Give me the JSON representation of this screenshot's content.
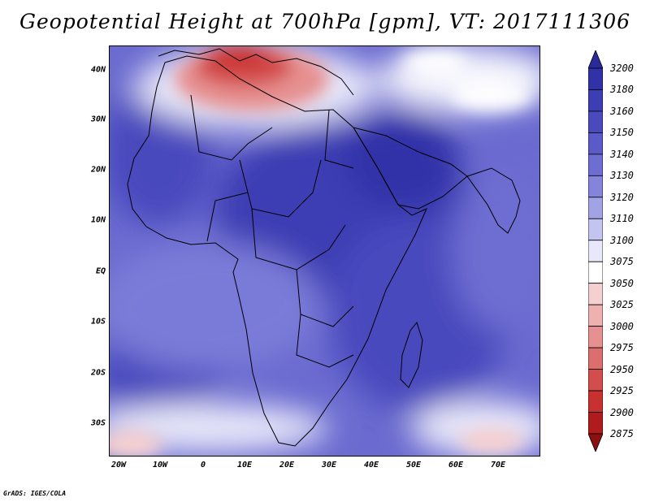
{
  "title": "Geopotential Height at 700hPa [gpm], VT: 2017111306",
  "footer": "GrADS: IGES/COLA",
  "axes": {
    "lat_labels": [
      "40N",
      "30N",
      "20N",
      "10N",
      "EQ",
      "10S",
      "20S",
      "30S"
    ],
    "lon_labels": [
      "20W",
      "10W",
      "0",
      "10E",
      "20E",
      "30E",
      "40E",
      "50E",
      "60E",
      "70E"
    ]
  },
  "colorbar": {
    "levels": [
      "3200",
      "3180",
      "3160",
      "3150",
      "3140",
      "3130",
      "3120",
      "3110",
      "3100",
      "3075",
      "3050",
      "3025",
      "3000",
      "2975",
      "2950",
      "2925",
      "2900",
      "2875"
    ],
    "colors": [
      "#2a2a9a",
      "#3232a8",
      "#3d3db4",
      "#4a4abe",
      "#5a5ac8",
      "#6d6dd2",
      "#8484dc",
      "#a2a2e6",
      "#c4c4f0",
      "#e8e8fa",
      "#ffffff",
      "#f6d0d0",
      "#efb0b0",
      "#e69090",
      "#dd6e6e",
      "#d44d4d",
      "#c93030",
      "#b01c1c",
      "#8c1010"
    ]
  },
  "colors": {
    "land_outline": "#000000",
    "background": "#ffffff"
  }
}
